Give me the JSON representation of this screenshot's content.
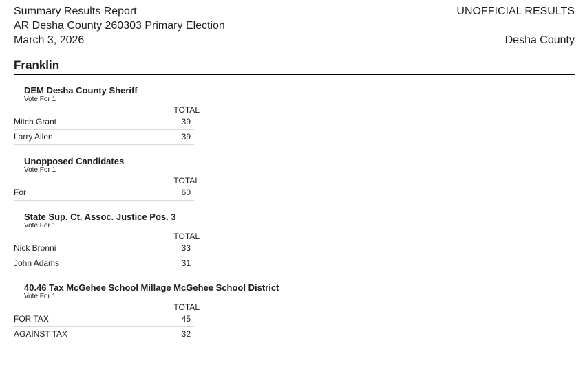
{
  "report": {
    "title": "Summary Results Report",
    "election": "AR Desha County 260303 Primary Election",
    "date": "March 3, 2026",
    "status": "UNOFFICIAL RESULTS",
    "jurisdiction": "Desha County"
  },
  "precinct": {
    "name": "Franklin",
    "contests": [
      {
        "title": "DEM Desha County Sheriff",
        "vote_for": "Vote For 1",
        "column_header": "TOTAL",
        "rows": [
          {
            "label": "Mitch Grant",
            "total": "39"
          },
          {
            "label": "Larry Allen",
            "total": "39"
          }
        ]
      },
      {
        "title": "Unopposed Candidates",
        "vote_for": "Vote For 1",
        "column_header": "TOTAL",
        "rows": [
          {
            "label": "For",
            "total": "60"
          }
        ]
      },
      {
        "title": "State Sup. Ct. Assoc. Justice Pos. 3",
        "vote_for": "Vote For 1",
        "column_header": "TOTAL",
        "rows": [
          {
            "label": "Nick Bronni",
            "total": "33"
          },
          {
            "label": "John Adams",
            "total": "31"
          }
        ]
      },
      {
        "title": "40.46 Tax McGehee School Millage McGehee School District",
        "vote_for": "Vote For 1",
        "column_header": "TOTAL",
        "rows": [
          {
            "label": "FOR TAX",
            "total": "45"
          },
          {
            "label": "AGAINST TAX",
            "total": "32"
          }
        ]
      }
    ]
  },
  "colors": {
    "text": "#1d1d1d",
    "precinct_rule": "#000000",
    "row_divider": "#d9d9d9",
    "background": "#ffffff"
  }
}
